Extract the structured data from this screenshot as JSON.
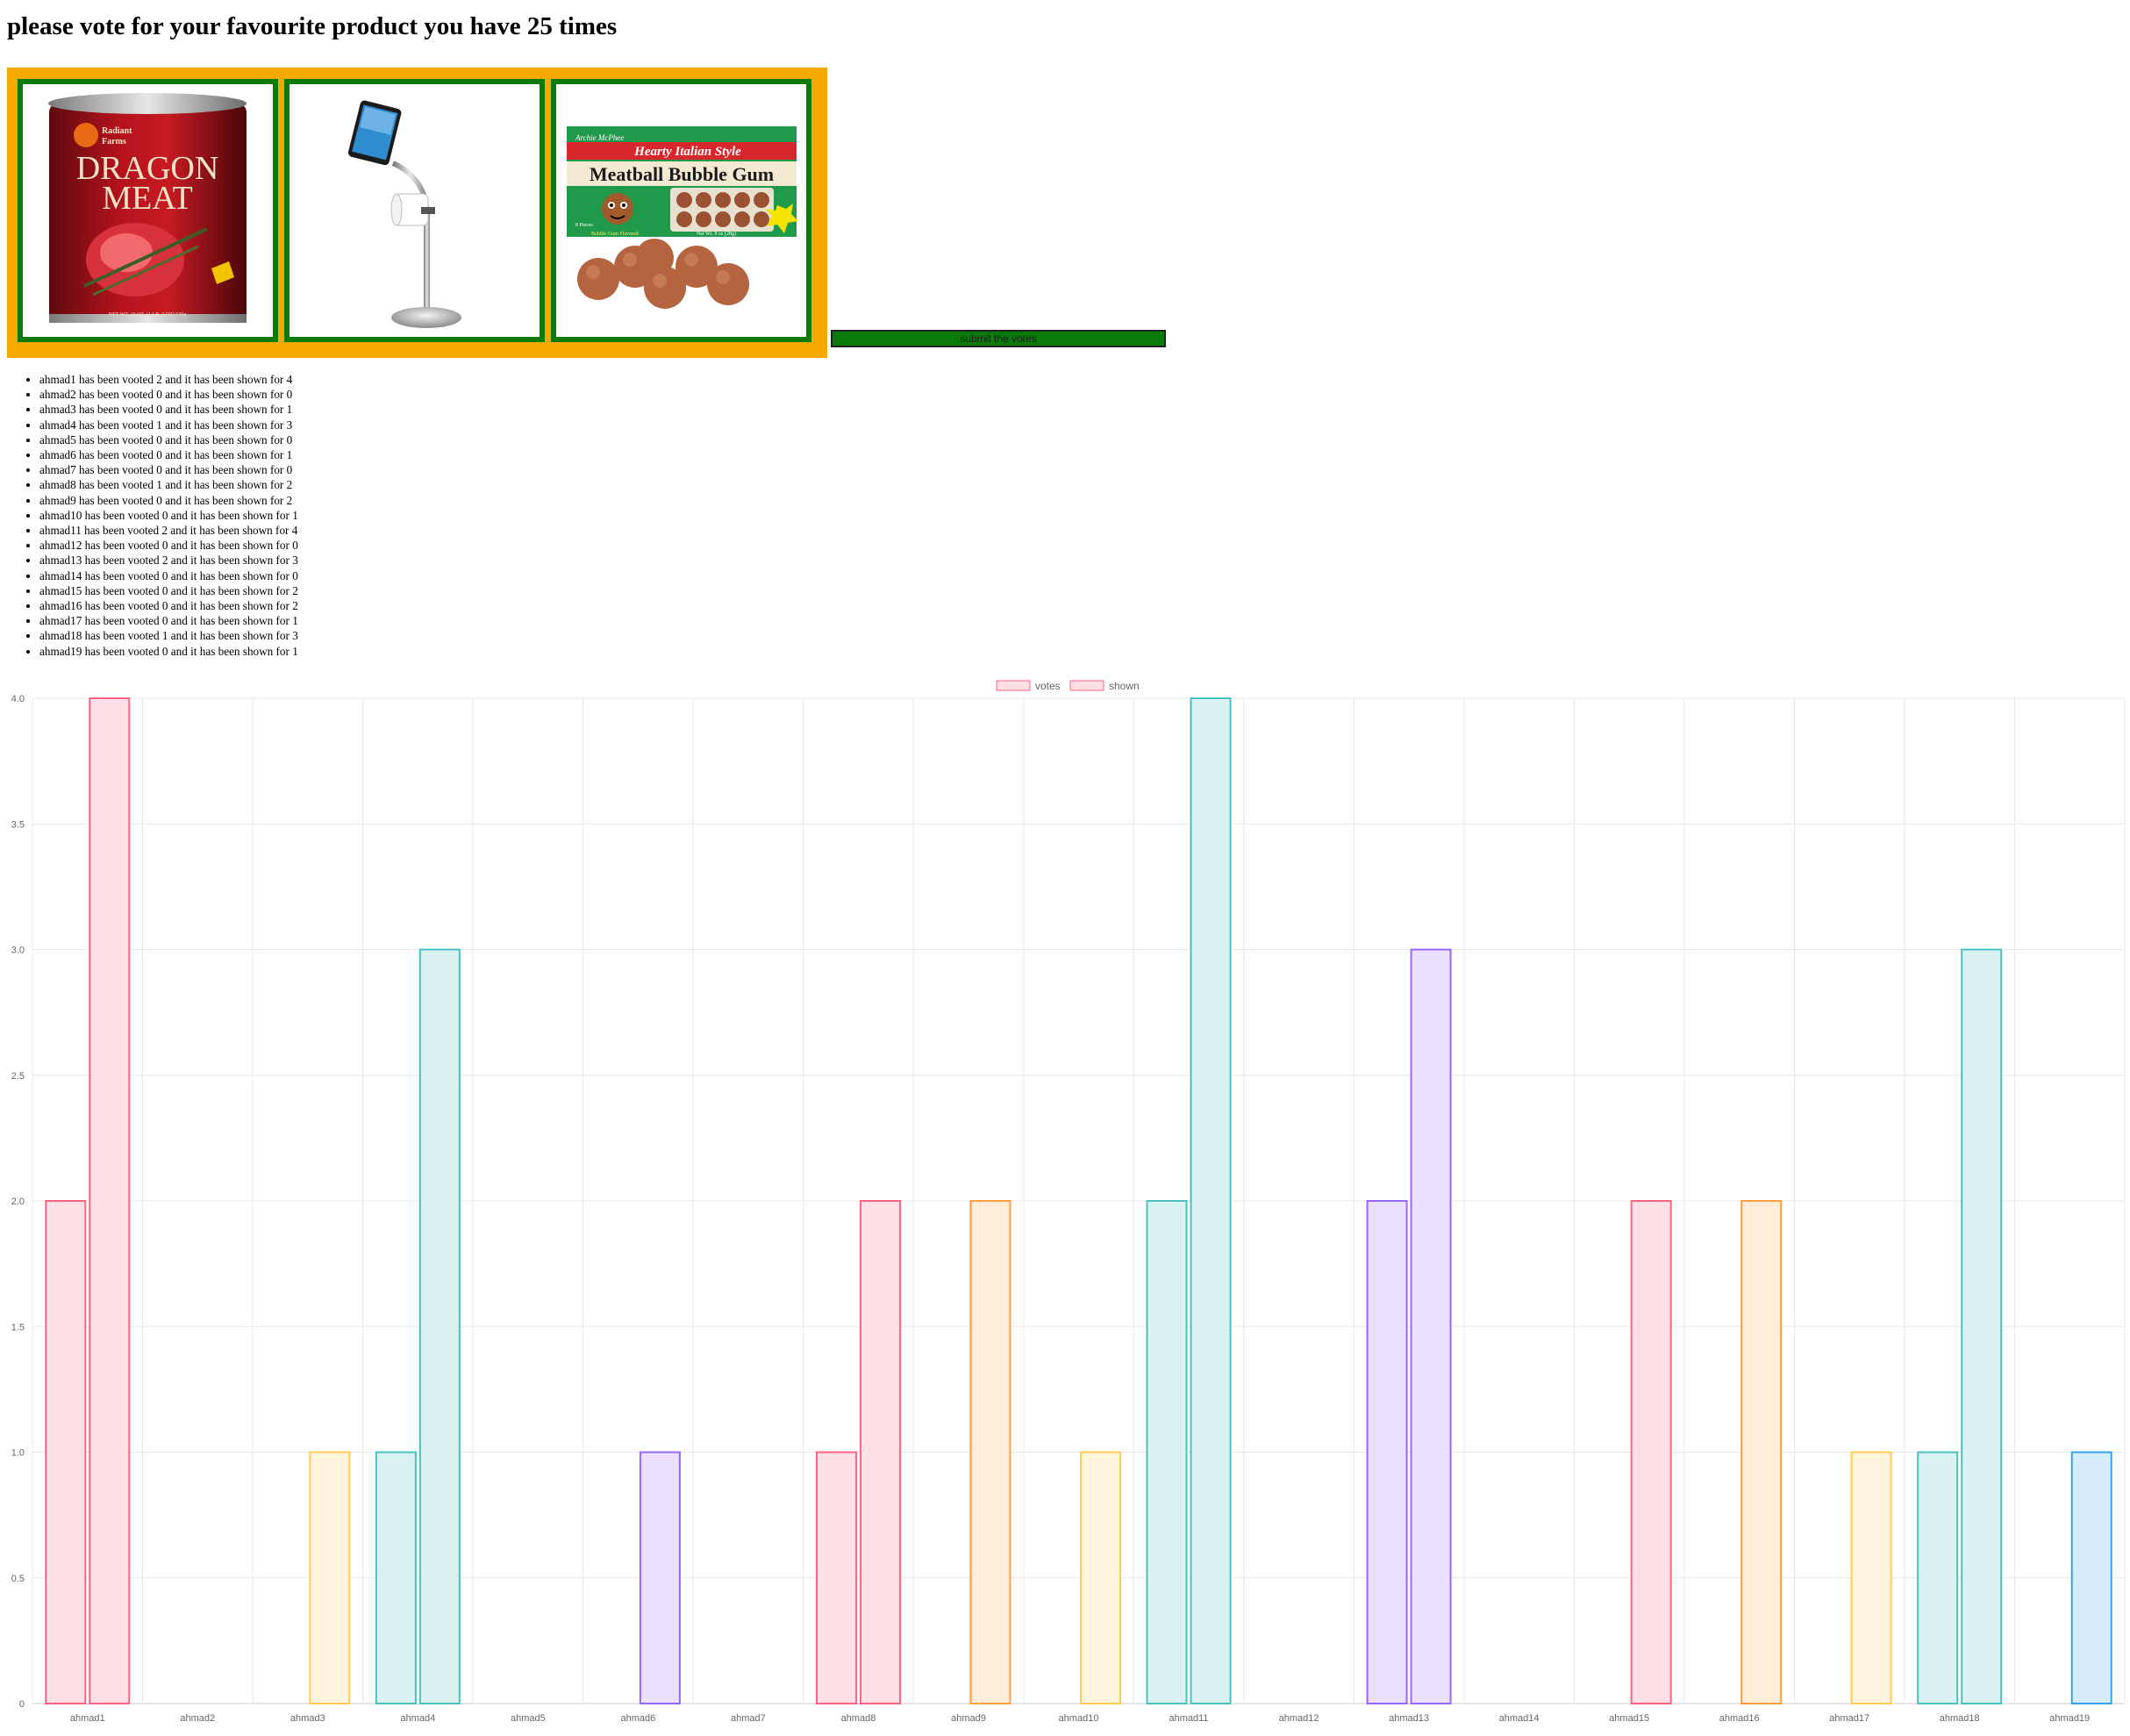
{
  "header": {
    "title": "please vote for your favourite product you have 25 times"
  },
  "products": [
    {
      "name": "dragon-meat-can",
      "brand_top": "Radiant",
      "brand_bottom": "Farms",
      "word1": "DRAGON",
      "word2": "MEAT",
      "footer": "NET WT. 10 OZ. (1 LB. 3 OZ) 539g"
    },
    {
      "name": "ipad-toilet-paper-stand"
    },
    {
      "name": "meatball-bubble-gum",
      "brand": "Archie McPhee",
      "tagline": "Hearty Italian Style",
      "product_title": "Meatball Bubble Gum",
      "pieces": "8 Pieces",
      "flavor": "Bubble Gum Flavored",
      "weight": "Net Wt. 8 oz (28g)",
      "badge": "Easy coated in candy shell"
    }
  ],
  "submit": {
    "label": "submit the votes"
  },
  "stats": [
    "ahmad1 has been vooted 2 and it has been shown for 4",
    "ahmad2 has been vooted 0 and it has been shown for 0",
    "ahmad3 has been vooted 0 and it has been shown for 1",
    "ahmad4 has been vooted 1 and it has been shown for 3",
    "ahmad5 has been vooted 0 and it has been shown for 0",
    "ahmad6 has been vooted 0 and it has been shown for 1",
    "ahmad7 has been vooted 0 and it has been shown for 0",
    "ahmad8 has been vooted 1 and it has been shown for 2",
    "ahmad9 has been vooted 0 and it has been shown for 2",
    "ahmad10 has been vooted 0 and it has been shown for 1",
    "ahmad11 has been vooted 2 and it has been shown for 4",
    "ahmad12 has been vooted 0 and it has been shown for 0",
    "ahmad13 has been vooted 2 and it has been shown for 3",
    "ahmad14 has been vooted 0 and it has been shown for 0",
    "ahmad15 has been vooted 0 and it has been shown for 2",
    "ahmad16 has been vooted 0 and it has been shown for 2",
    "ahmad17 has been vooted 0 and it has been shown for 1",
    "ahmad18 has been vooted 1 and it has been shown for 3",
    "ahmad19 has been vooted 0 and it has been shown for 1"
  ],
  "chart_data": {
    "type": "bar",
    "categories": [
      "ahmad1",
      "ahmad2",
      "ahmad3",
      "ahmad4",
      "ahmad5",
      "ahmad6",
      "ahmad7",
      "ahmad8",
      "ahmad9",
      "ahmad10",
      "ahmad11",
      "ahmad12",
      "ahmad13",
      "ahmad14",
      "ahmad15",
      "ahmad16",
      "ahmad17",
      "ahmad18",
      "ahmad19"
    ],
    "series": [
      {
        "name": "votes",
        "values": [
          2,
          0,
          0,
          1,
          0,
          0,
          0,
          1,
          0,
          0,
          2,
          0,
          2,
          0,
          0,
          0,
          0,
          1,
          0
        ]
      },
      {
        "name": "shown",
        "values": [
          4,
          0,
          1,
          3,
          0,
          1,
          0,
          2,
          2,
          1,
          4,
          0,
          3,
          0,
          2,
          2,
          1,
          3,
          1
        ]
      }
    ],
    "ylim": [
      0,
      4
    ],
    "yticks": [
      "0",
      "0.5",
      "1.0",
      "1.5",
      "2.0",
      "2.5",
      "3.0",
      "3.5",
      "4.0"
    ],
    "legend_position": "top",
    "grid": true,
    "palette": [
      {
        "fill": "#ffe0e6",
        "stroke": "#ff6384"
      },
      {
        "fill": "#fff5dd",
        "stroke": "#ffcd56"
      },
      {
        "fill": "#dbf2f2",
        "stroke": "#4bc0c0"
      },
      {
        "fill": "#ebe0ff",
        "stroke": "#9966ff"
      },
      {
        "fill": "#ffecd9",
        "stroke": "#ff9f40"
      },
      {
        "fill": "#d7ecfb",
        "stroke": "#36a2eb"
      }
    ],
    "category_colors": [
      0,
      0,
      1,
      2,
      0,
      3,
      0,
      0,
      4,
      1,
      2,
      0,
      3,
      0,
      0,
      4,
      1,
      2,
      5
    ]
  }
}
